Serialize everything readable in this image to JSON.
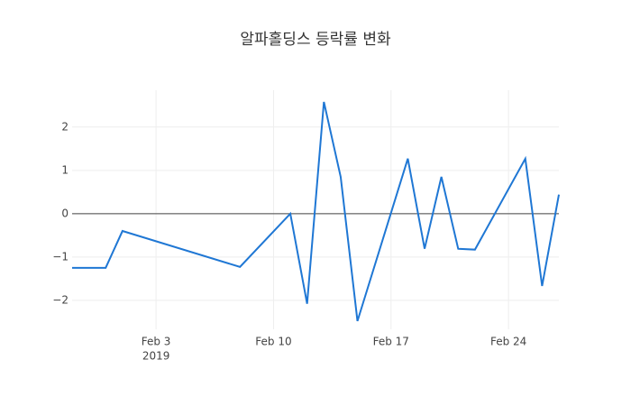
{
  "chart_data": {
    "type": "line",
    "title": "알파홀딩스 등락률 변화",
    "x": [
      "2019-01-29",
      "2019-01-31",
      "2019-02-01",
      "2019-02-08",
      "2019-02-11",
      "2019-02-12",
      "2019-02-13",
      "2019-02-14",
      "2019-02-15",
      "2019-02-18",
      "2019-02-19",
      "2019-02-20",
      "2019-02-21",
      "2019-02-22",
      "2019-02-25",
      "2019-02-26",
      "2019-02-27"
    ],
    "series": [
      {
        "color": "#1f77d4",
        "values": [
          -1.25,
          -1.25,
          -0.4,
          -1.23,
          0.0,
          -2.08,
          2.58,
          0.85,
          -2.48,
          1.27,
          -0.81,
          0.85,
          -0.81,
          -0.83,
          1.27,
          -1.67,
          0.44
        ]
      }
    ],
    "xlim": [
      "2019-01-29",
      "2019-02-27"
    ],
    "xticks": [
      {
        "value": "2019-02-03",
        "label": "Feb 3"
      },
      {
        "value": "2019-02-10",
        "label": "Feb 10"
      },
      {
        "value": "2019-02-17",
        "label": "Feb 17"
      },
      {
        "value": "2019-02-24",
        "label": "Feb 24"
      }
    ],
    "x_year_label": "2019",
    "ylim": [
      -2.67,
      2.85
    ],
    "yticks": [
      {
        "value": -2,
        "label": "−2"
      },
      {
        "value": -1,
        "label": "−1"
      },
      0,
      1,
      2
    ],
    "grid": true,
    "zeroline": true
  }
}
